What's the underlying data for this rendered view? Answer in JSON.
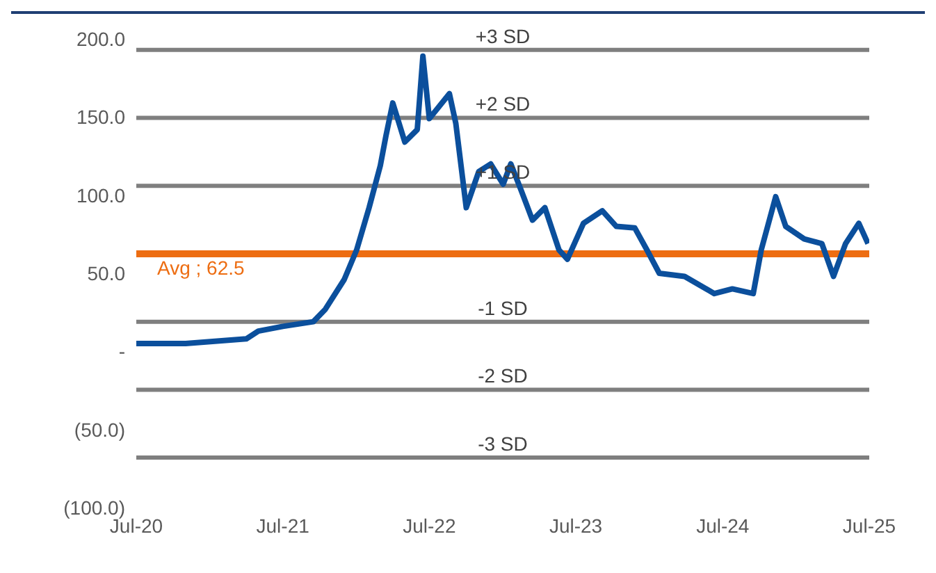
{
  "chart_data": {
    "type": "line",
    "x": [
      "2020-07",
      "2020-11",
      "2021-04",
      "2021-05",
      "2021-07",
      "2021-09-15",
      "2021-10-15",
      "2021-12",
      "2022-01",
      "2022-02",
      "2022-03",
      "2022-03-15",
      "2022-04",
      "2022-05",
      "2022-06",
      "2022-06-15",
      "2022-07",
      "2022-07-20",
      "2022-08-20",
      "2022-09-05",
      "2022-10",
      "2022-11",
      "2022-12",
      "2023-01",
      "2023-01-20",
      "2023-02-15",
      "2023-03-15",
      "2023-04-15",
      "2023-05-20",
      "2023-06-10",
      "2023-07-20",
      "2023-09-05",
      "2023-10-10",
      "2023-11-25",
      "2023-12-25",
      "2024-01-25",
      "2024-03-28",
      "2024-06-10",
      "2024-07-25",
      "2024-09-15",
      "2024-10-05",
      "2024-11-10",
      "2024-12-05",
      "2025-01-20",
      "2025-03-05",
      "2025-04-03",
      "2025-05-03",
      "2025-06-05",
      "2025-06-28"
    ],
    "series": [
      {
        "color": "#0b4f9c",
        "values": [
          5,
          5,
          8,
          13,
          16,
          19,
          27,
          46,
          65,
          92,
          119,
          138,
          159,
          134,
          142,
          189,
          149,
          155,
          165,
          146,
          92,
          115,
          120,
          107,
          120,
          103,
          84,
          92,
          65,
          59,
          82,
          90,
          80,
          79,
          65,
          50,
          48,
          37,
          40,
          37,
          65,
          99,
          80,
          72,
          69,
          48,
          69,
          82,
          69
        ]
      }
    ],
    "xlim": [
      "2020-07",
      "2025-07"
    ],
    "xticks": [
      {
        "value": "2020-07",
        "label": "Jul-20"
      },
      {
        "value": "2021-07",
        "label": "Jul-21"
      },
      {
        "value": "2022-07",
        "label": "Jul-22"
      },
      {
        "value": "2023-07",
        "label": "Jul-23"
      },
      {
        "value": "2024-07",
        "label": "Jul-24"
      },
      {
        "value": "2025-07",
        "label": "Jul-25"
      }
    ],
    "ylim": [
      -100,
      200
    ],
    "yticks": [
      {
        "value": -100,
        "label": "(100.0)"
      },
      {
        "value": -50,
        "label": "(50.0)"
      },
      {
        "value": 0,
        "label": "-"
      },
      {
        "value": 50,
        "label": "50.0"
      },
      {
        "value": 100,
        "label": "100.0"
      },
      {
        "value": 150,
        "label": "150.0"
      },
      {
        "value": 200,
        "label": "200.0"
      }
    ],
    "ref_lines": [
      {
        "axis": "y",
        "value": 193,
        "label": "+3 SD",
        "color": "#7f7f7f"
      },
      {
        "axis": "y",
        "value": 149.5,
        "label": "+2 SD",
        "color": "#7f7f7f"
      },
      {
        "axis": "y",
        "value": 106,
        "label": "+1 SD",
        "color": "#7f7f7f"
      },
      {
        "axis": "y",
        "value": 62.5,
        "label": "Avg ;  62.5",
        "color": "#ed6d12"
      },
      {
        "axis": "y",
        "value": 19,
        "label": "-1 SD",
        "color": "#7f7f7f"
      },
      {
        "axis": "y",
        "value": -24.5,
        "label": "-2 SD",
        "color": "#7f7f7f"
      },
      {
        "axis": "y",
        "value": -68,
        "label": "-3 SD",
        "color": "#7f7f7f"
      }
    ],
    "grid": false,
    "legend": false,
    "marker": "none",
    "line_style": "solid"
  }
}
